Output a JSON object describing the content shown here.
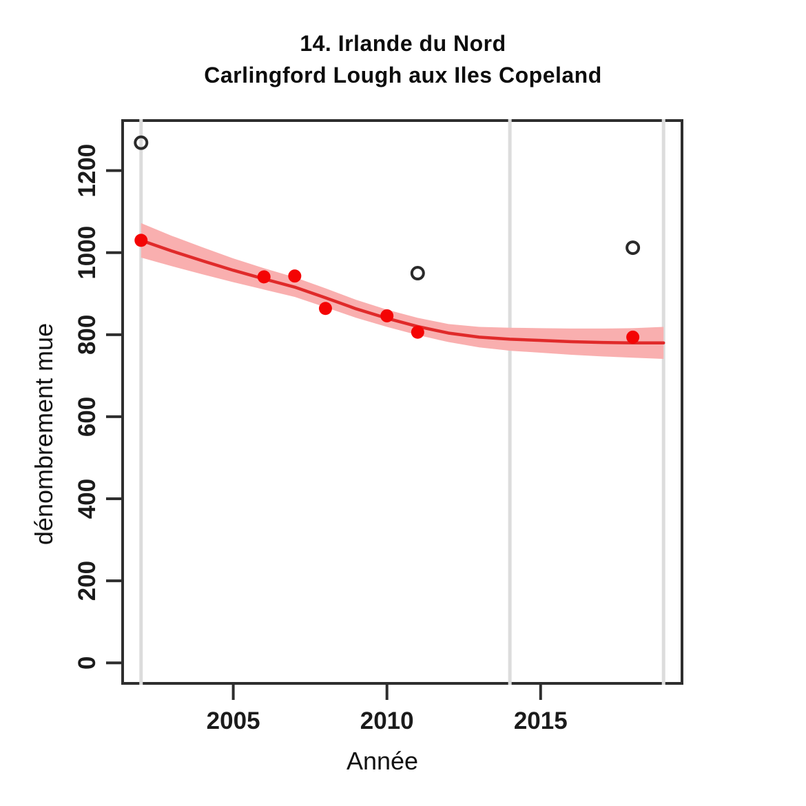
{
  "chart_data": {
    "type": "scatter",
    "title_line1": "14. Irlande du Nord",
    "title_line2": "Carlingford Lough aux Iles Copeland",
    "xlabel": "Année",
    "ylabel": "dénombrement mue",
    "x_ticks": [
      2005,
      2010,
      2015
    ],
    "y_ticks": [
      0,
      200,
      400,
      600,
      800,
      1000,
      1200
    ],
    "xlim": [
      2001.4,
      2019.6
    ],
    "ylim": [
      -50,
      1322
    ],
    "grid": false,
    "legend": "none",
    "vertical_reference_lines": [
      2002,
      2014,
      2019
    ],
    "series": [
      {
        "name": "observed-counts-filled",
        "style": "filled-red-point",
        "points": [
          [
            2002,
            1030
          ],
          [
            2006,
            941
          ],
          [
            2007,
            943
          ],
          [
            2008,
            864
          ],
          [
            2010,
            846
          ],
          [
            2011,
            806
          ],
          [
            2018,
            794
          ]
        ]
      },
      {
        "name": "excluded-counts-open",
        "style": "open-black-circle",
        "points": [
          [
            2002,
            1268
          ],
          [
            2011,
            950
          ],
          [
            2018,
            1012
          ]
        ]
      },
      {
        "name": "trend-fit",
        "style": "red-line-with-ci-ribbon",
        "points": [
          [
            2002,
            1030
          ],
          [
            2003,
            1004
          ],
          [
            2004,
            980
          ],
          [
            2005,
            957
          ],
          [
            2006,
            936
          ],
          [
            2007,
            916
          ],
          [
            2008,
            890
          ],
          [
            2009,
            863
          ],
          [
            2010,
            840
          ],
          [
            2011,
            820
          ],
          [
            2012,
            804
          ],
          [
            2013,
            794
          ],
          [
            2014,
            789
          ],
          [
            2015,
            786
          ],
          [
            2016,
            783
          ],
          [
            2017,
            781
          ],
          [
            2018,
            780
          ],
          [
            2019,
            780
          ]
        ],
        "ci_halfwidth": [
          42,
          37,
          33,
          29,
          26,
          24,
          23,
          22,
          21,
          21,
          22,
          25,
          28,
          30,
          32,
          34,
          36,
          39
        ]
      }
    ],
    "colors": {
      "point": "#f40404",
      "open_point_stroke": "#2a2a2a",
      "trend_line": "#e02a2a",
      "ribbon": "#f9afaf",
      "reference_line": "#dcdcdc",
      "axis": "#2e2e2e",
      "tick_text": "#1b1b1b",
      "background": "#ffffff"
    }
  }
}
